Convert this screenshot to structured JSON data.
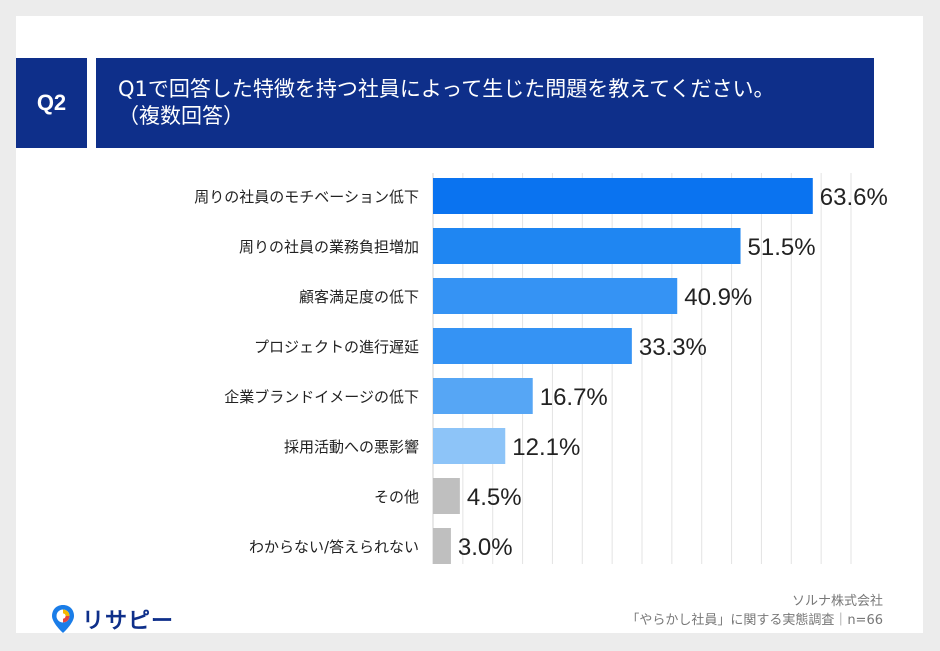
{
  "badge": "Q2",
  "question": {
    "line1": "Q1で回答した特徴を持つ社員によって生じた問題を教えてください。",
    "line2": "（複数回答）"
  },
  "logo": {
    "text": "リサピー"
  },
  "footer": {
    "company": "ソルナ株式会社",
    "survey": "「やらかし社員」に関する実態調査｜n=66"
  },
  "colors": {
    "header_bg": "#0e2f8a",
    "bar_shades": [
      "#0a73f0",
      "#1f86f2",
      "#3593f4",
      "#3593f4",
      "#56a6f5",
      "#8dc4f8",
      "#bfbfbf",
      "#bfbfbf"
    ]
  },
  "chart_data": {
    "type": "bar",
    "orientation": "horizontal",
    "categories": [
      "周りの社員のモチベーション低下",
      "周りの社員の業務負担増加",
      "顧客満足度の低下",
      "プロジェクトの進行遅延",
      "企業ブランドイメージの低下",
      "採用活動への悪影響",
      "その他",
      "わからない/答えられない"
    ],
    "values": [
      63.6,
      51.5,
      40.9,
      33.3,
      16.7,
      12.1,
      4.5,
      3.0
    ],
    "labels": [
      "63.6%",
      "51.5%",
      "40.9%",
      "33.3%",
      "16.7%",
      "12.1%",
      "4.5%",
      "3.0%"
    ],
    "xlim": [
      0,
      70
    ],
    "grid": true
  }
}
